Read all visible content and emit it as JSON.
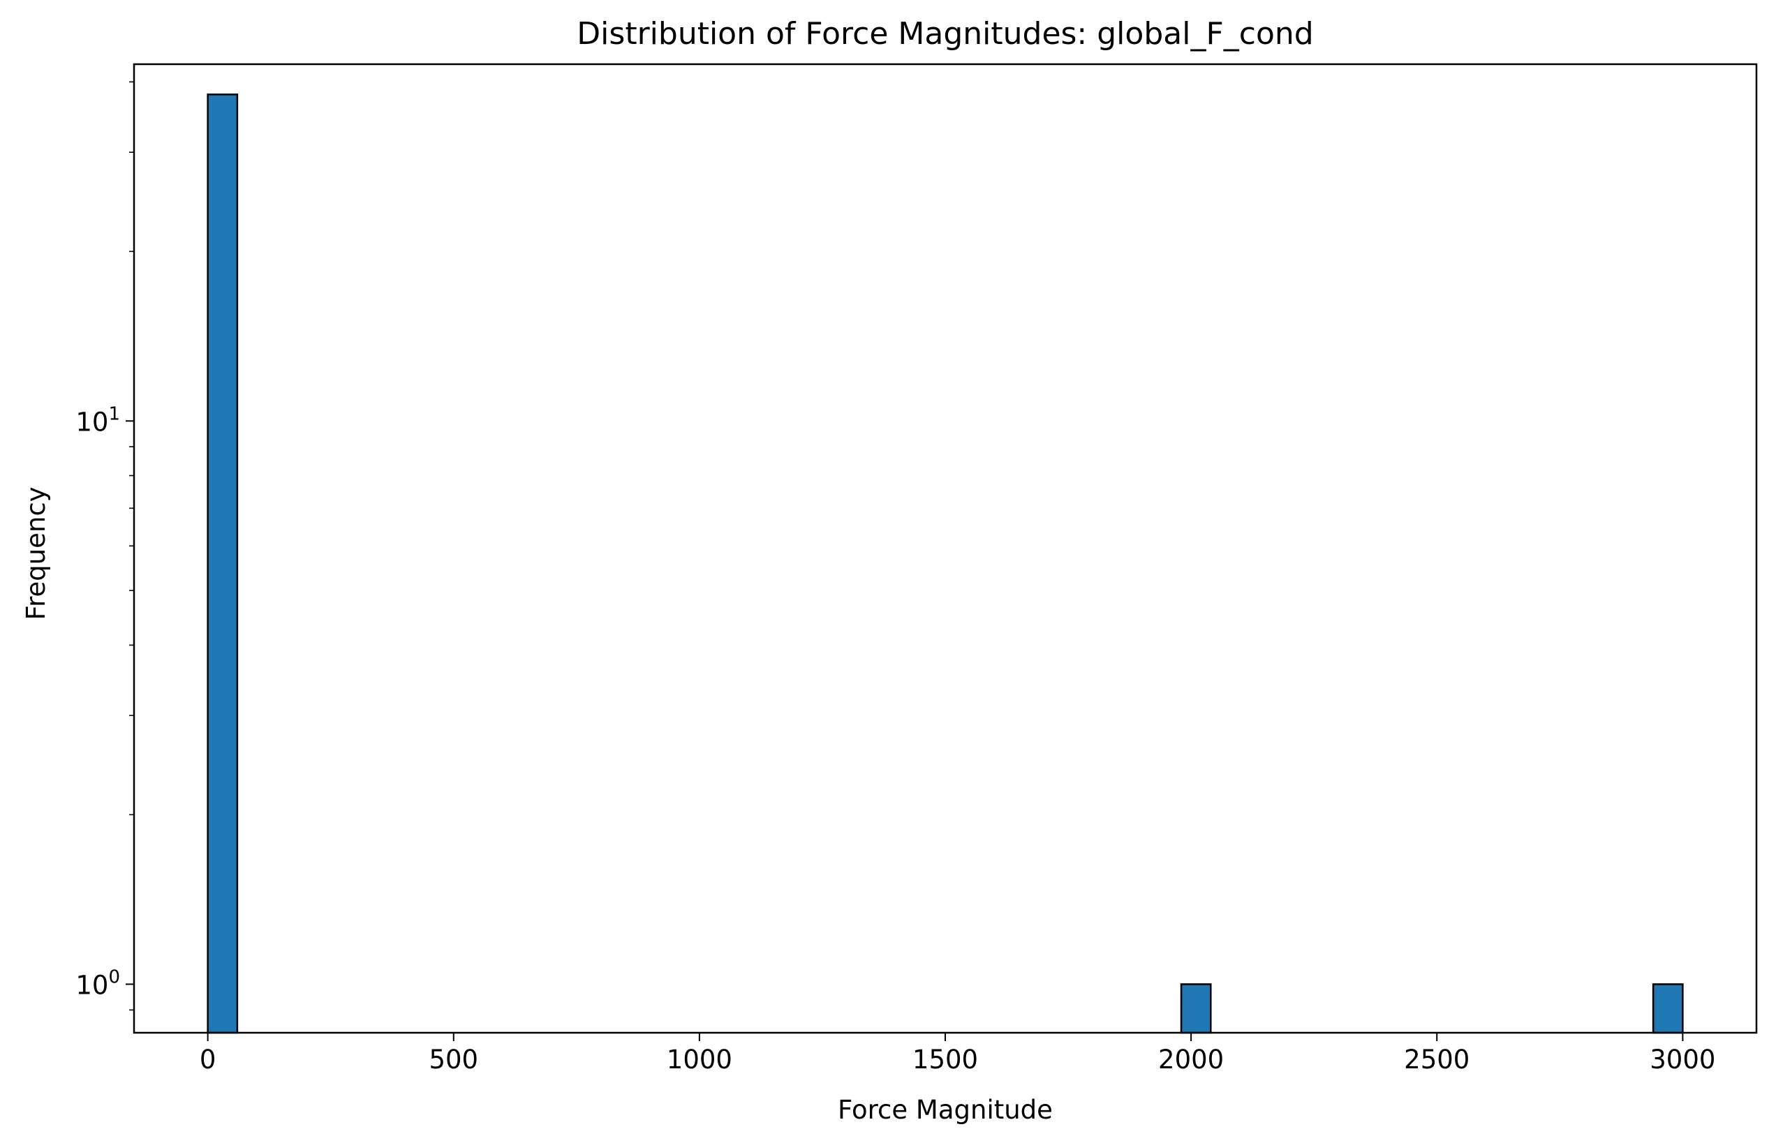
{
  "chart_data": {
    "type": "bar",
    "title": "Distribution of Force Magnitudes: global_F_cond",
    "xlabel": "Force Magnitude",
    "ylabel": "Frequency",
    "yscale": "log",
    "xlim": [
      -150,
      3150
    ],
    "ylim": [
      0.82,
      43
    ],
    "x_ticks": [
      0,
      500,
      1000,
      1500,
      2000,
      2500,
      3000
    ],
    "x_tick_labels": [
      "0",
      "500",
      "1000",
      "1500",
      "2000",
      "2500",
      "3000"
    ],
    "y_ticks": [
      {
        "value": 1,
        "base": "10",
        "exp": "0"
      },
      {
        "value": 10,
        "base": "10",
        "exp": "1"
      }
    ],
    "bins": [
      {
        "x0": 0,
        "x1": 60,
        "count": 38
      },
      {
        "x0": 1980,
        "x1": 2040,
        "count": 1
      },
      {
        "x0": 2940,
        "x1": 3000,
        "count": 1
      }
    ],
    "bar_color": "#1f77b4",
    "edge_color": "#000000",
    "grid": false,
    "legend": "none"
  }
}
